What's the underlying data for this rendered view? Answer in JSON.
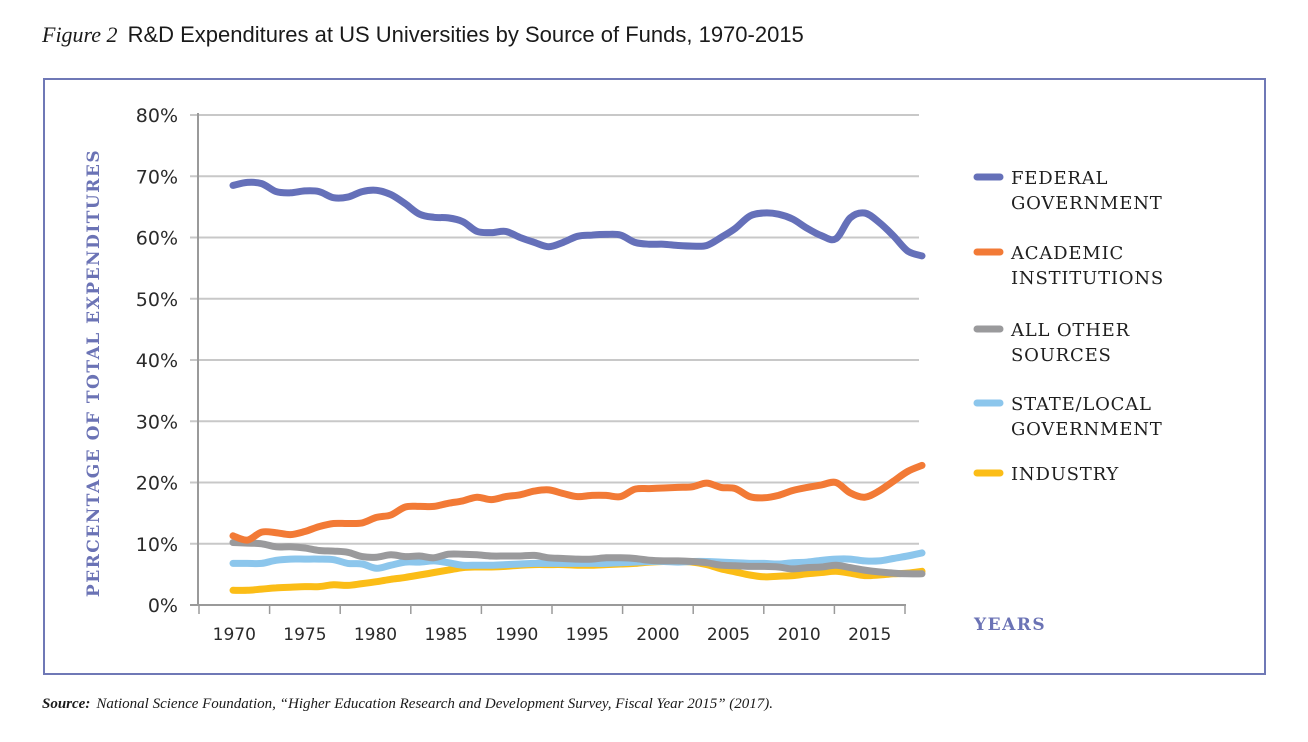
{
  "figure": {
    "number": "Figure 2",
    "title": "R&D Expenditures at US Universities by Source of Funds, 1970-2015"
  },
  "source": {
    "label": "Source:",
    "text": "National Science Foundation, “Higher Education Research and Development Survey, Fiscal Year 2015” (2017)."
  },
  "colors": {
    "frame": "#6f78b6",
    "axis_title": "#6b73b5",
    "grid": "#c8c8c8",
    "axis": "#9a9a9a"
  },
  "chart_data": {
    "type": "line",
    "title": "R&D Expenditures at US Universities by Source of Funds, 1970-2015",
    "xlabel": "YEARS",
    "ylabel": "PERCENTAGE OF TOTAL EXPENDITURES",
    "ylim": [
      0,
      80
    ],
    "yticks": [
      0,
      10,
      20,
      30,
      40,
      50,
      60,
      70,
      80
    ],
    "ytick_labels": [
      "0%",
      "10%",
      "20%",
      "30%",
      "40%",
      "50%",
      "60%",
      "70%",
      "80%"
    ],
    "xtick_labels": [
      "1970",
      "1975",
      "1980",
      "1985",
      "1990",
      "1995",
      "2000",
      "2005",
      "2010",
      "2015"
    ],
    "grid": true,
    "legend_position": "right",
    "x": [
      1970,
      1971,
      1972,
      1973,
      1974,
      1975,
      1976,
      1977,
      1978,
      1979,
      1980,
      1981,
      1982,
      1983,
      1984,
      1985,
      1986,
      1987,
      1988,
      1989,
      1990,
      1991,
      1992,
      1993,
      1994,
      1995,
      1996,
      1997,
      1998,
      1999,
      2000,
      2001,
      2002,
      2003,
      2004,
      2005,
      2006,
      2007,
      2008,
      2009,
      2010,
      2011,
      2012,
      2013,
      2014,
      2015,
      2016,
      2017,
      2018
    ],
    "series": [
      {
        "name": "FEDERAL GOVERNMENT",
        "legend_lines": [
          "FEDERAL",
          "GOVERNMENT"
        ],
        "color": "#6570b9",
        "values": [
          68.5,
          69.0,
          68.8,
          67.5,
          67.3,
          67.6,
          67.5,
          66.5,
          66.6,
          67.5,
          67.7,
          67.0,
          65.5,
          63.8,
          63.3,
          63.2,
          62.6,
          61.0,
          60.8,
          61.0,
          60.0,
          59.2,
          58.5,
          59.2,
          60.2,
          60.4,
          60.5,
          60.4,
          59.2,
          58.9,
          58.9,
          58.7,
          58.6,
          58.7,
          60.0,
          61.5,
          63.5,
          64.0,
          63.8,
          63.0,
          61.5,
          60.3,
          59.8,
          63.2,
          64.0,
          62.5,
          60.3,
          57.8,
          57.0
        ]
      },
      {
        "name": "ACADEMIC INSTITUTIONS",
        "legend_lines": [
          "ACADEMIC",
          "INSTITUTIONS"
        ],
        "color": "#f27a36",
        "values": [
          11.3,
          10.6,
          11.9,
          11.8,
          11.5,
          12.0,
          12.8,
          13.3,
          13.3,
          13.4,
          14.3,
          14.7,
          16.0,
          16.1,
          16.1,
          16.6,
          17.0,
          17.6,
          17.2,
          17.7,
          18.0,
          18.6,
          18.8,
          18.2,
          17.7,
          17.9,
          17.9,
          17.7,
          18.9,
          19.0,
          19.1,
          19.2,
          19.3,
          19.9,
          19.2,
          19.0,
          17.7,
          17.5,
          17.9,
          18.7,
          19.2,
          19.6,
          20.0,
          18.3,
          17.6,
          18.6,
          20.2,
          21.8,
          22.8
        ]
      },
      {
        "name": "ALL OTHER SOURCES",
        "legend_lines": [
          "ALL OTHER",
          "SOURCES"
        ],
        "color": "#9a9a9c",
        "values": [
          10.2,
          10.1,
          10.0,
          9.5,
          9.5,
          9.3,
          8.9,
          8.8,
          8.6,
          7.9,
          7.8,
          8.2,
          7.9,
          8.0,
          7.7,
          8.3,
          8.3,
          8.2,
          8.0,
          8.0,
          8.0,
          8.1,
          7.7,
          7.6,
          7.5,
          7.5,
          7.7,
          7.7,
          7.6,
          7.3,
          7.2,
          7.2,
          7.1,
          6.9,
          6.5,
          6.4,
          6.3,
          6.3,
          6.2,
          5.9,
          6.1,
          6.2,
          6.5,
          6.1,
          5.7,
          5.4,
          5.2,
          5.1,
          5.1
        ]
      },
      {
        "name": "STATE/LOCAL GOVERNMENT",
        "legend_lines": [
          "STATE/LOCAL",
          "GOVERNMENT"
        ],
        "color": "#8cc6ec",
        "values": [
          6.8,
          6.8,
          6.8,
          7.3,
          7.5,
          7.5,
          7.5,
          7.4,
          6.8,
          6.7,
          6.0,
          6.5,
          7.0,
          7.0,
          7.2,
          6.9,
          6.5,
          6.5,
          6.5,
          6.6,
          6.7,
          6.8,
          6.8,
          6.8,
          6.8,
          6.8,
          6.8,
          6.9,
          7.0,
          7.1,
          7.1,
          7.0,
          7.1,
          7.1,
          7.0,
          6.9,
          6.8,
          6.8,
          6.7,
          6.9,
          7.0,
          7.3,
          7.5,
          7.5,
          7.2,
          7.2,
          7.6,
          8.0,
          8.5
        ]
      },
      {
        "name": "INDUSTRY",
        "legend_lines": [
          "INDUSTRY"
        ],
        "color": "#fbbd17",
        "values": [
          2.4,
          2.4,
          2.6,
          2.8,
          2.9,
          3.0,
          3.0,
          3.3,
          3.2,
          3.5,
          3.8,
          4.2,
          4.5,
          4.9,
          5.3,
          5.7,
          6.1,
          6.2,
          6.2,
          6.3,
          6.5,
          6.6,
          6.6,
          6.6,
          6.5,
          6.5,
          6.6,
          6.7,
          6.8,
          7.0,
          7.1,
          7.1,
          7.0,
          6.6,
          5.9,
          5.4,
          4.9,
          4.6,
          4.7,
          4.8,
          5.1,
          5.3,
          5.5,
          5.2,
          4.8,
          4.9,
          5.1,
          5.2,
          5.5
        ]
      }
    ]
  }
}
